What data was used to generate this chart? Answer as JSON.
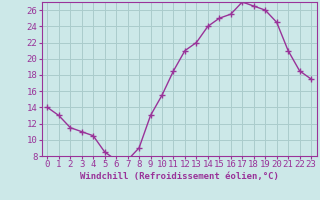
{
  "x": [
    0,
    1,
    2,
    3,
    4,
    5,
    6,
    7,
    8,
    9,
    10,
    11,
    12,
    13,
    14,
    15,
    16,
    17,
    18,
    19,
    20,
    21,
    22,
    23
  ],
  "y": [
    14.0,
    13.0,
    11.5,
    11.0,
    10.5,
    8.5,
    7.5,
    7.5,
    9.0,
    13.0,
    15.5,
    18.5,
    21.0,
    22.0,
    24.0,
    25.0,
    25.5,
    27.0,
    26.5,
    26.0,
    24.5,
    21.0,
    18.5,
    17.5
  ],
  "line_color": "#993399",
  "marker": "+",
  "marker_size": 4,
  "marker_lw": 1.0,
  "bg_color": "#cce8e8",
  "grid_color": "#aacccc",
  "xlabel": "Windchill (Refroidissement éolien,°C)",
  "ylabel": "",
  "ylim": [
    8,
    27
  ],
  "xlim": [
    -0.5,
    23.5
  ],
  "yticks": [
    8,
    10,
    12,
    14,
    16,
    18,
    20,
    22,
    24,
    26
  ],
  "xticks": [
    0,
    1,
    2,
    3,
    4,
    5,
    6,
    7,
    8,
    9,
    10,
    11,
    12,
    13,
    14,
    15,
    16,
    17,
    18,
    19,
    20,
    21,
    22,
    23
  ],
  "label_color": "#993399",
  "tick_color": "#993399",
  "font_size_xlabel": 6.5,
  "font_size_ticks": 6.5,
  "line_width": 1.0
}
